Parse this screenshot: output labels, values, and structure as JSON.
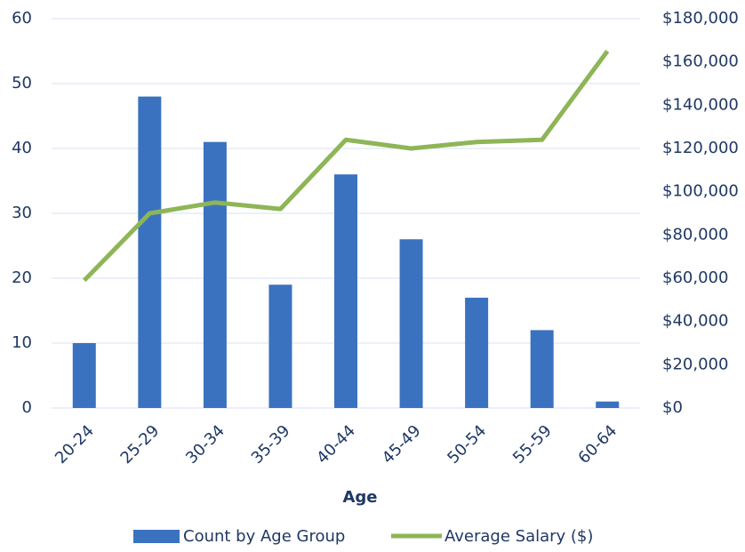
{
  "chart_data": {
    "type": "bar-line",
    "x_label": "Age",
    "categories": [
      "20-24",
      "25-29",
      "30-34",
      "35-39",
      "40-44",
      "45-49",
      "50-54",
      "55-59",
      "60-64"
    ],
    "series": [
      {
        "name": "Count by Age Group",
        "type": "bar",
        "color": "#3b72c0",
        "values": [
          10,
          48,
          41,
          19,
          36,
          26,
          17,
          12,
          1
        ]
      },
      {
        "name": "Average Salary ($)",
        "type": "line",
        "axis": "y2",
        "color": "#8eb556",
        "values": [
          59000,
          90000,
          95000,
          92000,
          124000,
          120000,
          123000,
          124000,
          165000
        ]
      }
    ],
    "ylim": [
      0,
      60
    ],
    "yticks": [
      0,
      10,
      20,
      30,
      40,
      50,
      60
    ],
    "y2lim": [
      0,
      180000
    ],
    "y2ticks": [
      {
        "value": 0,
        "label": "$0"
      },
      {
        "value": 20000,
        "label": "$20,000"
      },
      {
        "value": 40000,
        "label": "$40,000"
      },
      {
        "value": 60000,
        "label": "$60,000"
      },
      {
        "value": 80000,
        "label": "$80,000"
      },
      {
        "value": 100000,
        "label": "$100,000"
      },
      {
        "value": 120000,
        "label": "$120,000"
      },
      {
        "value": 140000,
        "label": "$140,000"
      },
      {
        "value": 160000,
        "label": "$160,000"
      },
      {
        "value": 180000,
        "label": "$180,000"
      }
    ],
    "grid": true,
    "legend": "bottom"
  }
}
